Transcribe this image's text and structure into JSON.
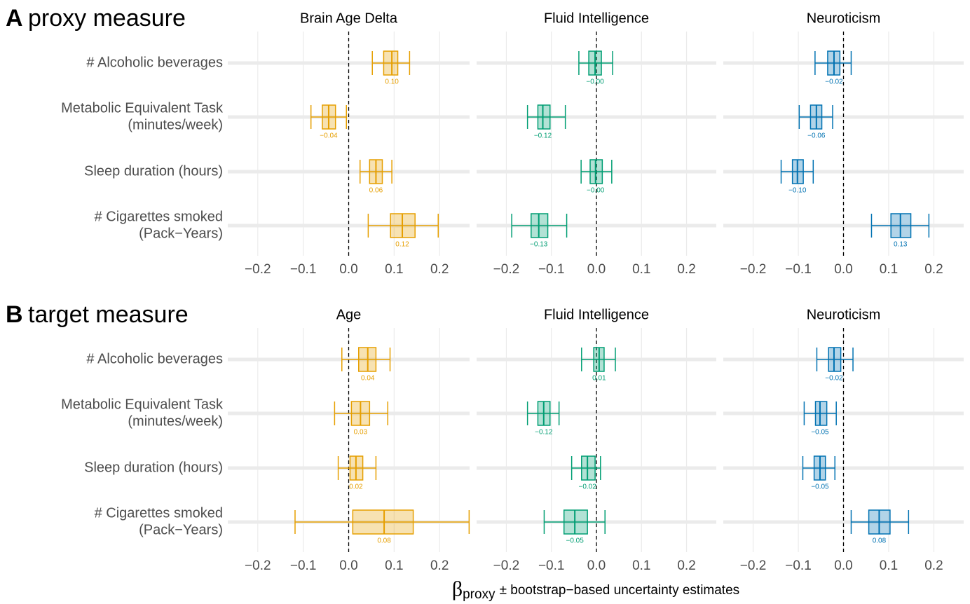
{
  "chart_data": [
    {
      "type": "box",
      "label": "A",
      "title": "proxy measure",
      "categories": [
        [
          "# Alcoholic beverages"
        ],
        [
          "Metabolic Equivalent Task",
          "(minutes/week)"
        ],
        [
          "Sleep duration (hours)"
        ],
        [
          "# Cigarettes smoked",
          "(Pack−Years)"
        ]
      ],
      "panels": [
        {
          "title": "Brain Age Delta",
          "color": "#E69F00",
          "xlim": [
            -0.266,
            0.266
          ],
          "reference_line": 0,
          "xticks": [
            {
              "value": -0.2,
              "label": "−0.2"
            },
            {
              "value": -0.1,
              "label": "−0.1"
            },
            {
              "value": 0,
              "label": "0.0"
            },
            0.1,
            0.2
          ],
          "whisker_low": [
            0.052,
            -0.083,
            0.025,
            0.043
          ],
          "q1": [
            0.077,
            -0.058,
            0.046,
            0.092
          ],
          "median": [
            0.095,
            -0.044,
            0.06,
            0.118
          ],
          "q3": [
            0.108,
            -0.029,
            0.074,
            0.146
          ],
          "whisker_high": [
            0.134,
            -0.005,
            0.095,
            0.197
          ],
          "value_labels": [
            "0.10",
            "−0.04",
            "0.06",
            "0.12"
          ]
        },
        {
          "title": "Fluid Intelligence",
          "color": "#009E73",
          "xlim": [
            -0.266,
            0.266
          ],
          "reference_line": 0,
          "xticks": [
            {
              "value": -0.2,
              "label": "−0.2"
            },
            {
              "value": -0.1,
              "label": "−0.1"
            },
            {
              "value": 0,
              "label": "0.0"
            },
            0.1,
            0.2
          ],
          "whisker_low": [
            -0.039,
            -0.153,
            -0.034,
            -0.188
          ],
          "q1": [
            -0.017,
            -0.13,
            -0.014,
            -0.145
          ],
          "median": [
            -0.003,
            -0.119,
            -0.002,
            -0.128
          ],
          "q3": [
            0.011,
            -0.103,
            0.013,
            -0.108
          ],
          "whisker_high": [
            0.036,
            -0.069,
            0.034,
            -0.066
          ],
          "value_labels": [
            "−0.00",
            "−0.12",
            "−0.00",
            "−0.13"
          ]
        },
        {
          "title": "Neuroticism",
          "color": "#0072B2",
          "xlim": [
            -0.266,
            0.266
          ],
          "reference_line": 0,
          "xticks": [
            {
              "value": -0.2,
              "label": "−0.2"
            },
            {
              "value": -0.1,
              "label": "−0.1"
            },
            {
              "value": 0,
              "label": "0.0"
            },
            0.1,
            0.2
          ],
          "whisker_low": [
            -0.063,
            -0.098,
            -0.138,
            0.062
          ],
          "q1": [
            -0.035,
            -0.073,
            -0.113,
            0.105
          ],
          "median": [
            -0.021,
            -0.06,
            -0.102,
            0.126
          ],
          "q3": [
            -0.008,
            -0.048,
            -0.089,
            0.149
          ],
          "whisker_high": [
            0.017,
            -0.024,
            -0.067,
            0.189
          ],
          "value_labels": [
            "−0.02",
            "−0.06",
            "−0.10",
            "0.13"
          ]
        }
      ]
    },
    {
      "type": "box",
      "label": "B",
      "title": "target measure",
      "categories": [
        [
          "# Alcoholic beverages"
        ],
        [
          "Metabolic Equivalent Task",
          "(minutes/week)"
        ],
        [
          "Sleep duration (hours)"
        ],
        [
          "# Cigarettes smoked",
          "(Pack−Years)"
        ]
      ],
      "panels": [
        {
          "title": "Age",
          "color": "#E69F00",
          "xlim": [
            -0.266,
            0.266
          ],
          "reference_line": 0,
          "xticks": [
            {
              "value": -0.2,
              "label": "−0.2"
            },
            {
              "value": -0.1,
              "label": "−0.1"
            },
            {
              "value": 0,
              "label": "0.0"
            },
            0.1,
            0.2
          ],
          "whisker_low": [
            -0.015,
            -0.031,
            -0.023,
            -0.118
          ],
          "q1": [
            0.022,
            0.006,
            0.003,
            0.009
          ],
          "median": [
            0.042,
            0.026,
            0.016,
            0.078
          ],
          "q3": [
            0.06,
            0.046,
            0.031,
            0.142
          ],
          "whisker_high": [
            0.091,
            0.086,
            0.06,
            0.265
          ],
          "value_labels": [
            "0.04",
            "0.03",
            "0.02",
            "0.08"
          ]
        },
        {
          "title": "Fluid Intelligence",
          "color": "#009E73",
          "xlim": [
            -0.266,
            0.266
          ],
          "reference_line": 0,
          "xticks": [
            {
              "value": -0.2,
              "label": "−0.2"
            },
            {
              "value": -0.1,
              "label": "−0.1"
            },
            {
              "value": 0,
              "label": "0.0"
            },
            0.1,
            0.2
          ],
          "whisker_low": [
            -0.033,
            -0.153,
            -0.055,
            -0.116
          ],
          "q1": [
            -0.006,
            -0.13,
            -0.033,
            -0.072
          ],
          "median": [
            0.006,
            -0.117,
            -0.02,
            -0.048
          ],
          "q3": [
            0.017,
            -0.103,
            -0.003,
            -0.02
          ],
          "whisker_high": [
            0.042,
            -0.083,
            0.009,
            0.019
          ],
          "value_labels": [
            "0.01",
            "−0.12",
            "−0.02",
            "−0.05"
          ]
        },
        {
          "title": "Neuroticism",
          "color": "#0072B2",
          "xlim": [
            -0.266,
            0.266
          ],
          "reference_line": 0,
          "xticks": [
            {
              "value": -0.2,
              "label": "−0.2"
            },
            {
              "value": -0.1,
              "label": "−0.1"
            },
            {
              "value": 0,
              "label": "0.0"
            },
            0.1,
            0.2
          ],
          "whisker_low": [
            -0.059,
            -0.087,
            -0.09,
            0.017
          ],
          "q1": [
            -0.033,
            -0.062,
            -0.065,
            0.056
          ],
          "median": [
            -0.021,
            -0.052,
            -0.052,
            0.079
          ],
          "q3": [
            -0.006,
            -0.037,
            -0.04,
            0.103
          ],
          "whisker_high": [
            0.021,
            -0.016,
            -0.019,
            0.144
          ],
          "value_labels": [
            "−0.02",
            "−0.05",
            "−0.05",
            "0.08"
          ]
        }
      ]
    }
  ],
  "figure": {
    "xlabel_symbol": "β",
    "xlabel_subscript": "proxy",
    "xlabel_text": "± bootstrap−based uncertainty estimates"
  }
}
